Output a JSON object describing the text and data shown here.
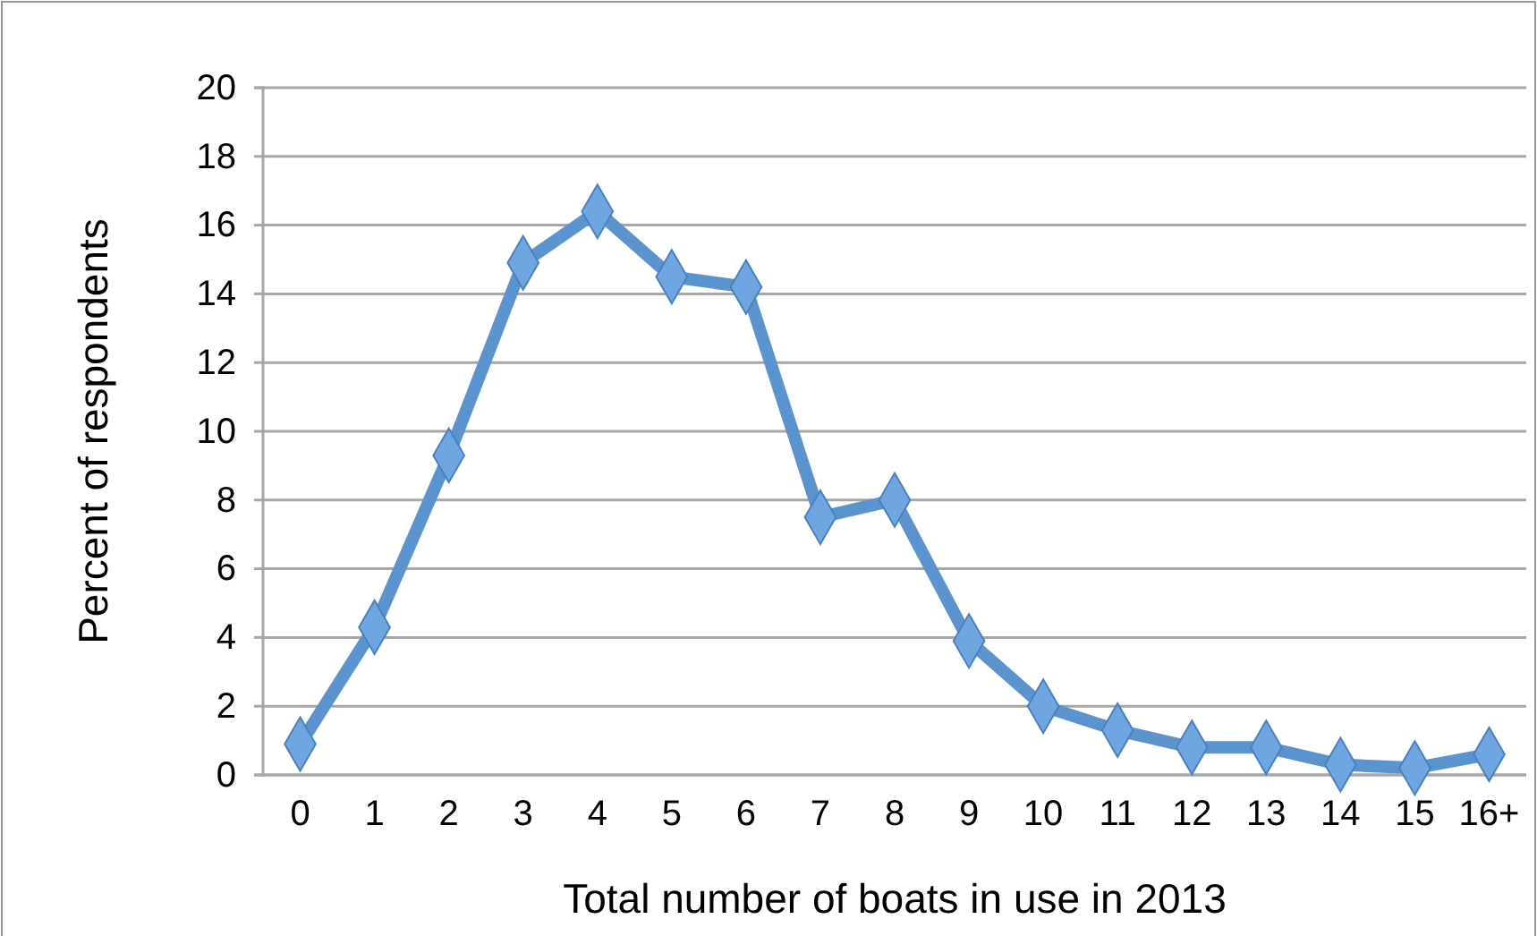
{
  "chart_data": {
    "type": "line",
    "xlabel": "Total number of boats in use in 2013",
    "ylabel": "Percent of respondents",
    "categories": [
      "0",
      "1",
      "2",
      "3",
      "4",
      "5",
      "6",
      "7",
      "8",
      "9",
      "10",
      "11",
      "12",
      "13",
      "14",
      "15",
      "16+"
    ],
    "series": [
      {
        "color": "#5b93ce",
        "values": [
          0.9,
          4.3,
          9.3,
          14.9,
          16.4,
          14.5,
          14.2,
          7.5,
          8.0,
          3.9,
          2.0,
          1.3,
          0.8,
          0.8,
          0.3,
          0.2,
          0.6
        ]
      }
    ],
    "ylim": [
      0,
      20
    ],
    "yticks": [
      0,
      2,
      4,
      6,
      8,
      10,
      12,
      14,
      16,
      18,
      20
    ],
    "grid": "y",
    "marker": "diamond",
    "legend": false
  }
}
